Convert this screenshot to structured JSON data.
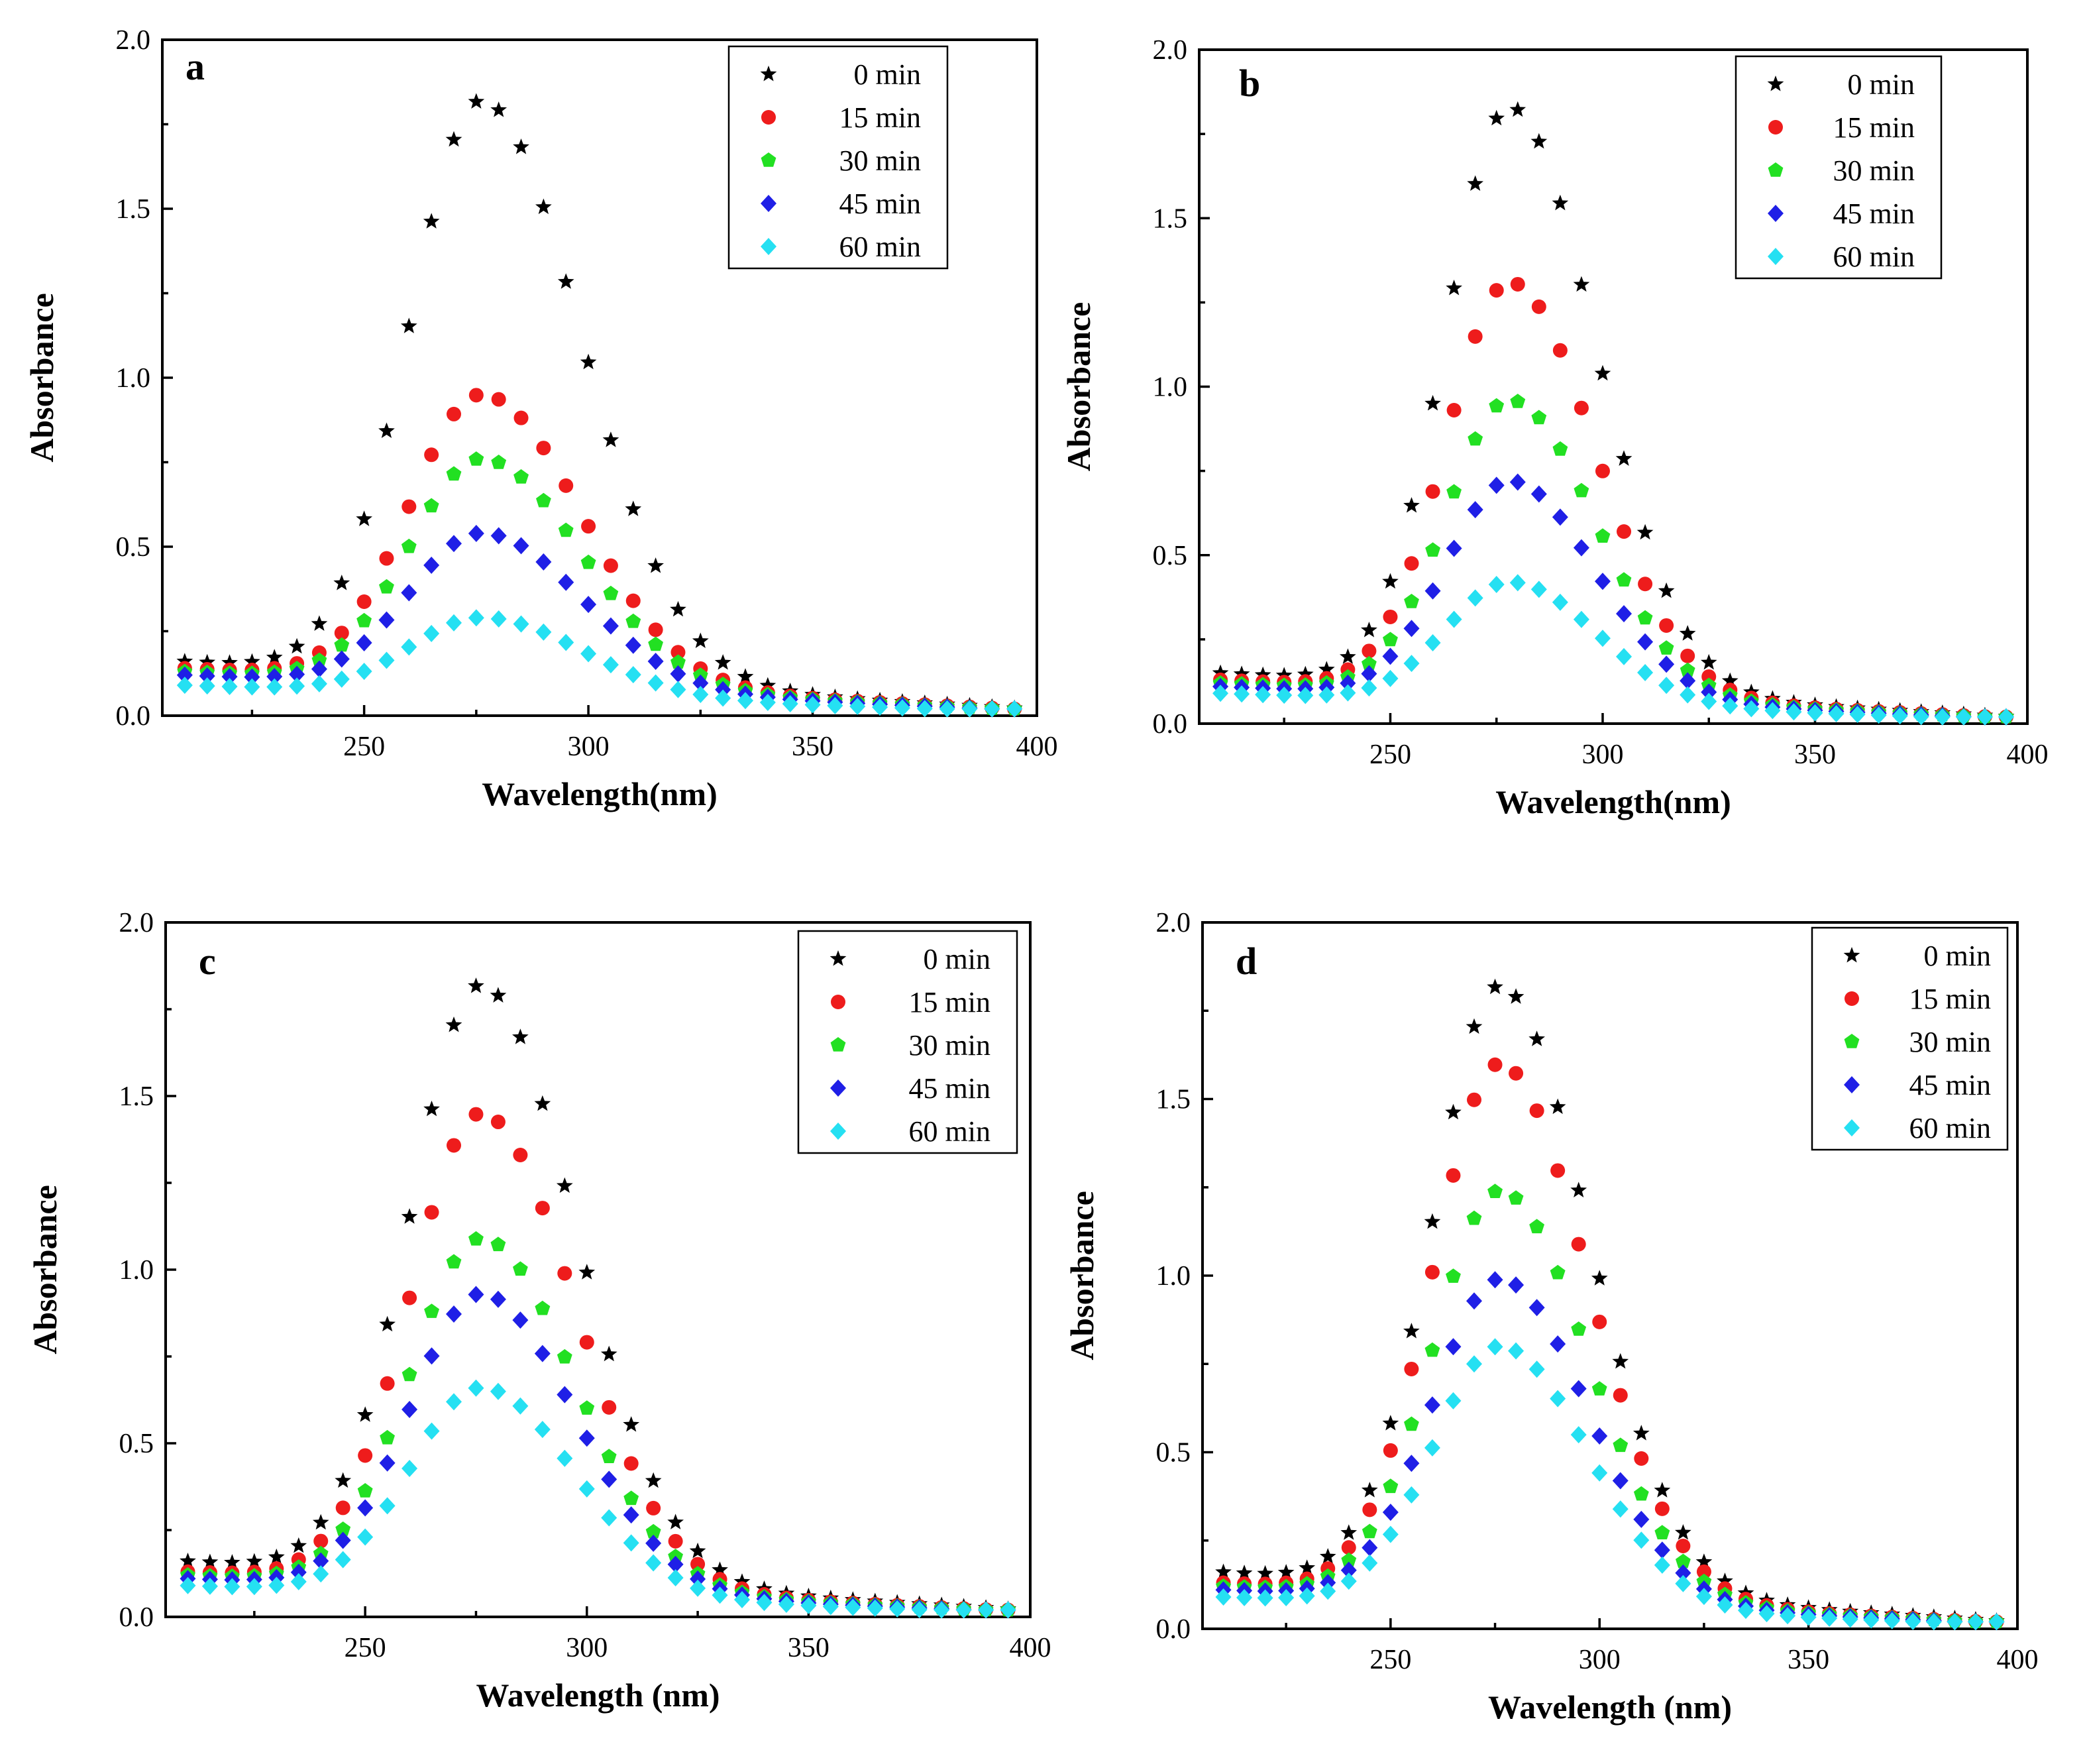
{
  "figure": {
    "series_styles": [
      {
        "name": "0 min",
        "color": "#000000",
        "marker": "star"
      },
      {
        "name": "15 min",
        "color": "#ee1c1c",
        "marker": "circle"
      },
      {
        "name": "30 min",
        "color": "#22e022",
        "marker": "pentagon"
      },
      {
        "name": "45 min",
        "color": "#1f1fe6",
        "marker": "diamond"
      },
      {
        "name": "60 min",
        "color": "#25e0f2",
        "marker": "diamond"
      }
    ]
  },
  "chart_data": [
    {
      "type": "scatter",
      "panel": "a",
      "xlabel": "Wavelength(nm)",
      "ylabel": "Absorbance",
      "xlim": [
        205,
        400
      ],
      "ylim": [
        0,
        2.0
      ],
      "xticks": [
        "250",
        "300",
        "350",
        "400"
      ],
      "yticks": [
        "0.0",
        "0.5",
        "1.0",
        "1.5",
        "2.0"
      ],
      "peak_x": 276,
      "sigma_left": 16,
      "sigma_right": 22,
      "x_start": 210,
      "x_step": 5,
      "x_end": 395,
      "series": [
        {
          "name": "0 min",
          "peak": 1.82,
          "base": 0.16
        },
        {
          "name": "15 min",
          "peak": 0.95,
          "base": 0.14
        },
        {
          "name": "30 min",
          "peak": 0.76,
          "base": 0.13
        },
        {
          "name": "45 min",
          "peak": 0.54,
          "base": 0.12
        },
        {
          "name": "60 min",
          "peak": 0.29,
          "base": 0.09
        }
      ]
    },
    {
      "type": "scatter",
      "panel": "b",
      "xlabel": "Wavelength(nm)",
      "ylabel": "Absorbance",
      "xlim": [
        205,
        400
      ],
      "ylim": [
        0,
        2.0
      ],
      "xticks": [
        "250",
        "300",
        "350",
        "400"
      ],
      "yticks": [
        "0.0",
        "0.5",
        "1.0",
        "1.5",
        "2.0"
      ],
      "peak_x": 278,
      "sigma_left": 15,
      "sigma_right": 20,
      "x_start": 210,
      "x_step": 5,
      "x_end": 395,
      "series": [
        {
          "name": "0 min",
          "peak": 1.83,
          "base": 0.15
        },
        {
          "name": "15 min",
          "peak": 1.31,
          "base": 0.13
        },
        {
          "name": "30 min",
          "peak": 0.96,
          "base": 0.12
        },
        {
          "name": "45 min",
          "peak": 0.72,
          "base": 0.11
        },
        {
          "name": "60 min",
          "peak": 0.42,
          "base": 0.09
        }
      ]
    },
    {
      "type": "scatter",
      "panel": "c",
      "xlabel": "Wavelength (nm)",
      "ylabel": "Absorbance",
      "xlim": [
        205,
        400
      ],
      "ylim": [
        0,
        2.0
      ],
      "xticks": [
        "250",
        "300",
        "350",
        "400"
      ],
      "yticks": [
        "0.0",
        "0.5",
        "1.0",
        "1.5",
        "2.0"
      ],
      "peak_x": 276,
      "sigma_left": 16,
      "sigma_right": 21,
      "x_start": 210,
      "x_step": 5,
      "x_end": 395,
      "series": [
        {
          "name": "0 min",
          "peak": 1.82,
          "base": 0.16
        },
        {
          "name": "15 min",
          "peak": 1.45,
          "base": 0.13
        },
        {
          "name": "30 min",
          "peak": 1.09,
          "base": 0.12
        },
        {
          "name": "45 min",
          "peak": 0.93,
          "base": 0.11
        },
        {
          "name": "60 min",
          "peak": 0.66,
          "base": 0.09
        }
      ]
    },
    {
      "type": "scatter",
      "panel": "d",
      "xlabel": "Wavelength (nm)",
      "ylabel": "Absorbance",
      "xlim": [
        205,
        400
      ],
      "ylim": [
        0,
        2.0
      ],
      "xticks": [
        "250",
        "300",
        "350",
        "400"
      ],
      "yticks": [
        "0.0",
        "0.5",
        "1.0",
        "1.5",
        "2.0"
      ],
      "peak_x": 276,
      "sigma_left": 16,
      "sigma_right": 21,
      "x_start": 210,
      "x_step": 5,
      "x_end": 395,
      "series": [
        {
          "name": "0 min",
          "peak": 1.82,
          "base": 0.16
        },
        {
          "name": "15 min",
          "peak": 1.6,
          "base": 0.13
        },
        {
          "name": "30 min",
          "peak": 1.24,
          "base": 0.12
        },
        {
          "name": "45 min",
          "peak": 0.99,
          "base": 0.11
        },
        {
          "name": "60 min",
          "peak": 0.8,
          "base": 0.09
        }
      ]
    }
  ]
}
